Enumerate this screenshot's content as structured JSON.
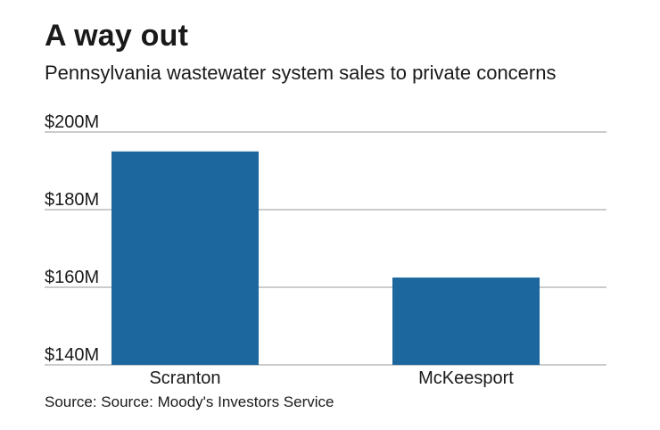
{
  "header": {
    "title": "A way out",
    "subtitle": "Pennsylvania wastewater system sales to private concerns"
  },
  "footer": {
    "source": "Source: Source: Moody's Investors Service"
  },
  "colors": {
    "bar": "#1b679e",
    "grid": "#9a9a9a"
  },
  "chart_data": {
    "type": "bar",
    "categories": [
      "Scranton",
      "McKeesport"
    ],
    "values": [
      195,
      162.5
    ],
    "ylim": [
      140,
      200
    ],
    "yticks": [
      140,
      160,
      180,
      200
    ],
    "ytick_labels": [
      "$140M",
      "$160M",
      "$180M",
      "$200M"
    ],
    "grid": true,
    "legend": "none"
  }
}
